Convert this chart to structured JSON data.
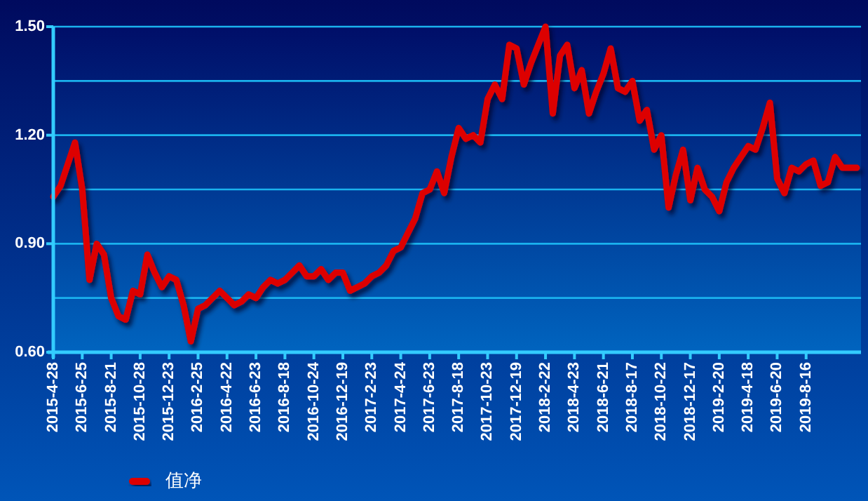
{
  "chart_data": {
    "type": "line",
    "categories": [
      "2015-4-28",
      null,
      null,
      null,
      "2015-6-25",
      null,
      null,
      null,
      "2015-8-21",
      null,
      null,
      null,
      "2015-10-28",
      null,
      null,
      null,
      "2015-12-23",
      null,
      null,
      null,
      "2016-2-25",
      null,
      null,
      null,
      "2016-4-22",
      null,
      null,
      null,
      "2016-6-23",
      null,
      null,
      null,
      "2016-8-18",
      null,
      null,
      null,
      "2016-10-24",
      null,
      null,
      null,
      "2016-12-19",
      null,
      null,
      null,
      "2017-2-23",
      null,
      null,
      null,
      "2017-4-24",
      null,
      null,
      null,
      "2017-6-23",
      null,
      null,
      null,
      "2017-8-18",
      null,
      null,
      null,
      "2017-10-23",
      null,
      null,
      null,
      "2017-12-19",
      null,
      null,
      null,
      "2018-2-22",
      null,
      null,
      null,
      "2018-4-23",
      null,
      null,
      null,
      "2018-6-21",
      null,
      null,
      null,
      "2018-8-17",
      null,
      null,
      null,
      "2018-10-22",
      null,
      null,
      null,
      "2018-12-17",
      null,
      null,
      null,
      "2019-2-20",
      null,
      null,
      null,
      "2019-4-18",
      null,
      null,
      null,
      "2019-6-20",
      null,
      null,
      null,
      "2019-8-16",
      null,
      null,
      null,
      null,
      null,
      null,
      null
    ],
    "series": [
      {
        "name": "值净",
        "color": "#dd0000",
        "values": [
          1.03,
          1.06,
          1.12,
          1.18,
          1.05,
          0.8,
          0.9,
          0.87,
          0.75,
          0.7,
          0.69,
          0.77,
          0.76,
          0.87,
          0.82,
          0.78,
          0.81,
          0.8,
          0.73,
          0.63,
          0.72,
          0.73,
          0.75,
          0.77,
          0.75,
          0.73,
          0.74,
          0.76,
          0.75,
          0.78,
          0.8,
          0.79,
          0.8,
          0.82,
          0.84,
          0.81,
          0.81,
          0.83,
          0.8,
          0.82,
          0.82,
          0.77,
          0.78,
          0.79,
          0.81,
          0.82,
          0.84,
          0.88,
          0.89,
          0.93,
          0.97,
          1.04,
          1.05,
          1.1,
          1.04,
          1.14,
          1.22,
          1.19,
          1.2,
          1.18,
          1.3,
          1.34,
          1.3,
          1.45,
          1.44,
          1.34,
          1.4,
          1.45,
          1.5,
          1.26,
          1.42,
          1.45,
          1.33,
          1.38,
          1.26,
          1.32,
          1.37,
          1.44,
          1.33,
          1.32,
          1.35,
          1.24,
          1.27,
          1.16,
          1.2,
          1.0,
          1.09,
          1.16,
          1.02,
          1.11,
          1.05,
          1.03,
          0.99,
          1.07,
          1.11,
          1.14,
          1.17,
          1.16,
          1.22,
          1.29,
          1.08,
          1.04,
          1.11,
          1.1,
          1.12,
          1.13,
          1.06,
          1.07,
          1.14,
          1.11,
          1.11,
          1.11
        ]
      }
    ],
    "ylim": [
      0.6,
      1.5
    ],
    "yticks": [
      {
        "value": 0.6,
        "label": "0.60"
      },
      {
        "value": 0.75,
        "label": null
      },
      {
        "value": 0.9,
        "label": "0.90"
      },
      {
        "value": 1.05,
        "label": null
      },
      {
        "value": 1.2,
        "label": "1.20"
      },
      {
        "value": 1.35,
        "label": null
      },
      {
        "value": 1.5,
        "label": "1.50"
      }
    ],
    "grid": "y",
    "legend": "bottom left",
    "marker": "none",
    "line_style": "solid"
  }
}
